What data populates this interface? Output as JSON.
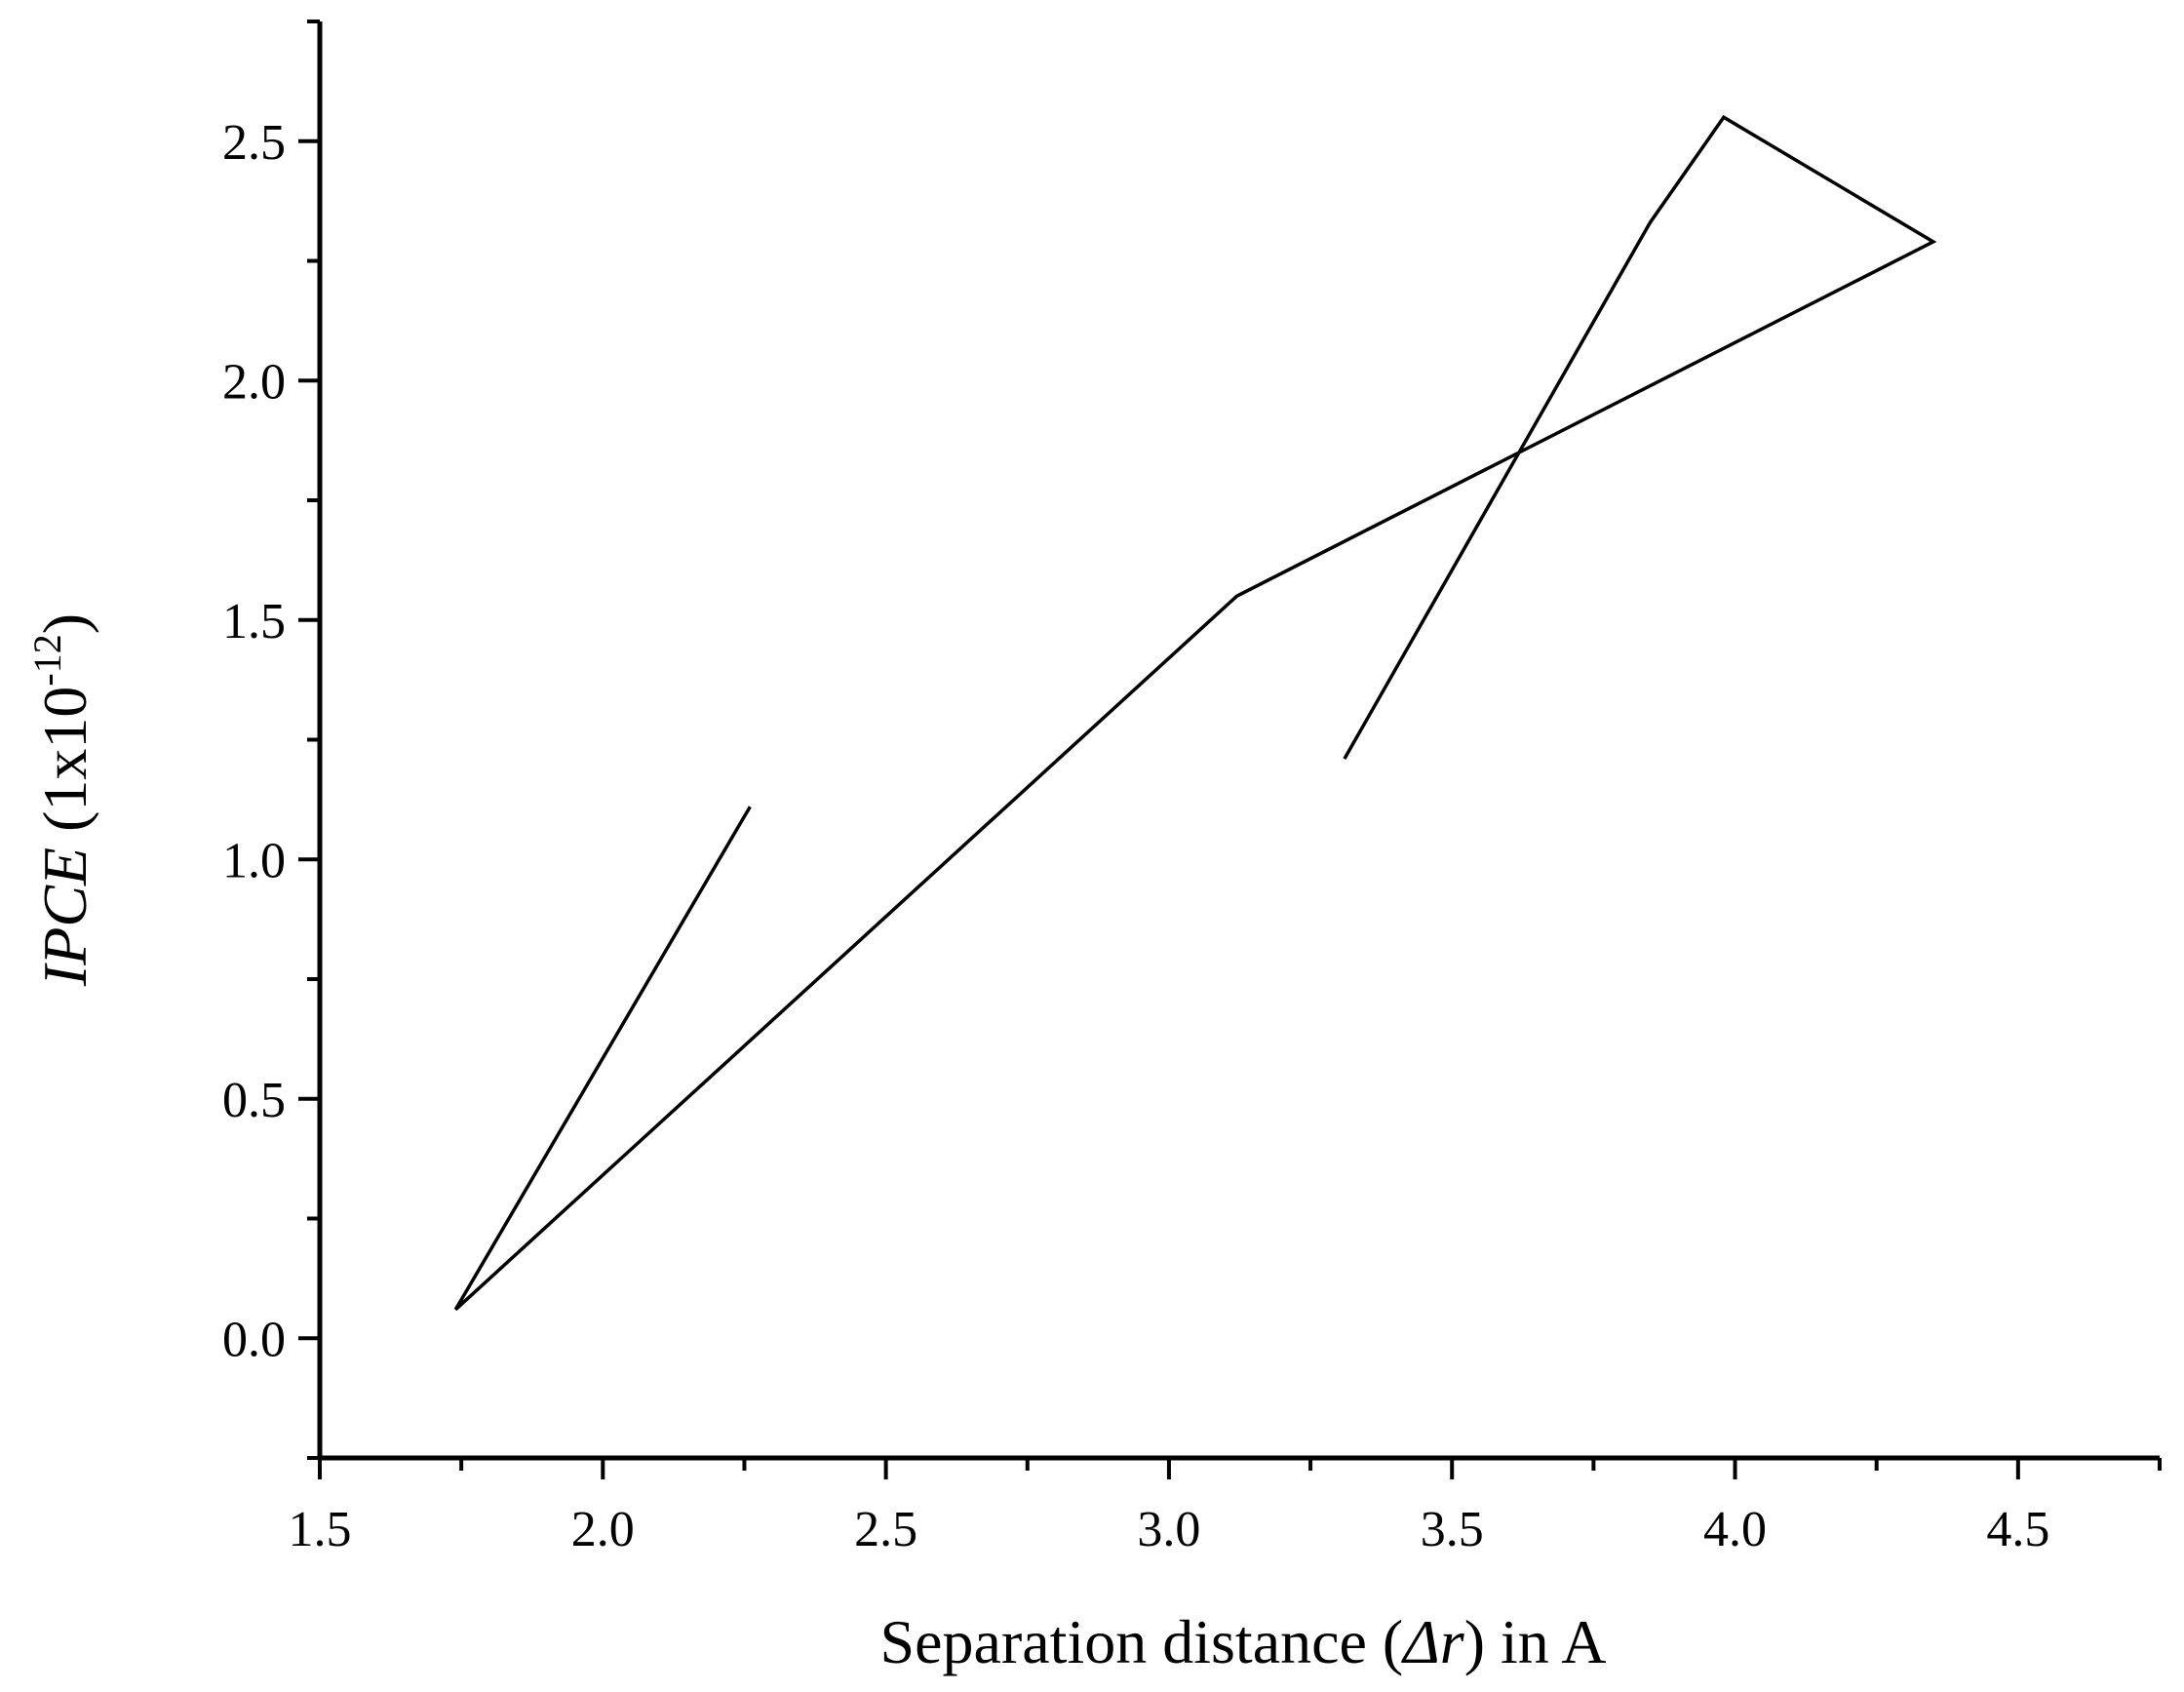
{
  "chart_data": {
    "type": "line",
    "title": "",
    "xlabel": {
      "main": "Separation distance (",
      "italic": "Δr",
      "end": ") in A"
    },
    "ylabel": {
      "italic": "IPCE",
      "main": " (1x10",
      "sup": "-12",
      "end": ")"
    },
    "xlim": [
      1.5,
      4.75
    ],
    "ylim": [
      -0.25,
      2.75
    ],
    "x_ticks": [
      "1.5",
      "2.0",
      "2.5",
      "3.0",
      "3.5",
      "4.0",
      "4.5"
    ],
    "y_ticks": [
      "0.0",
      "0.5",
      "1.0",
      "1.5",
      "2.0",
      "2.5"
    ],
    "x_minor_step": 0.25,
    "y_minor_step": 0.25,
    "grid": false,
    "legend": "none",
    "color": "#000000",
    "series": [
      {
        "x": [
          2.26,
          1.74,
          3.12,
          4.35,
          3.98,
          3.85,
          3.31
        ],
        "y": [
          1.11,
          0.06,
          1.55,
          2.29,
          2.55,
          2.33,
          1.21
        ]
      }
    ]
  }
}
